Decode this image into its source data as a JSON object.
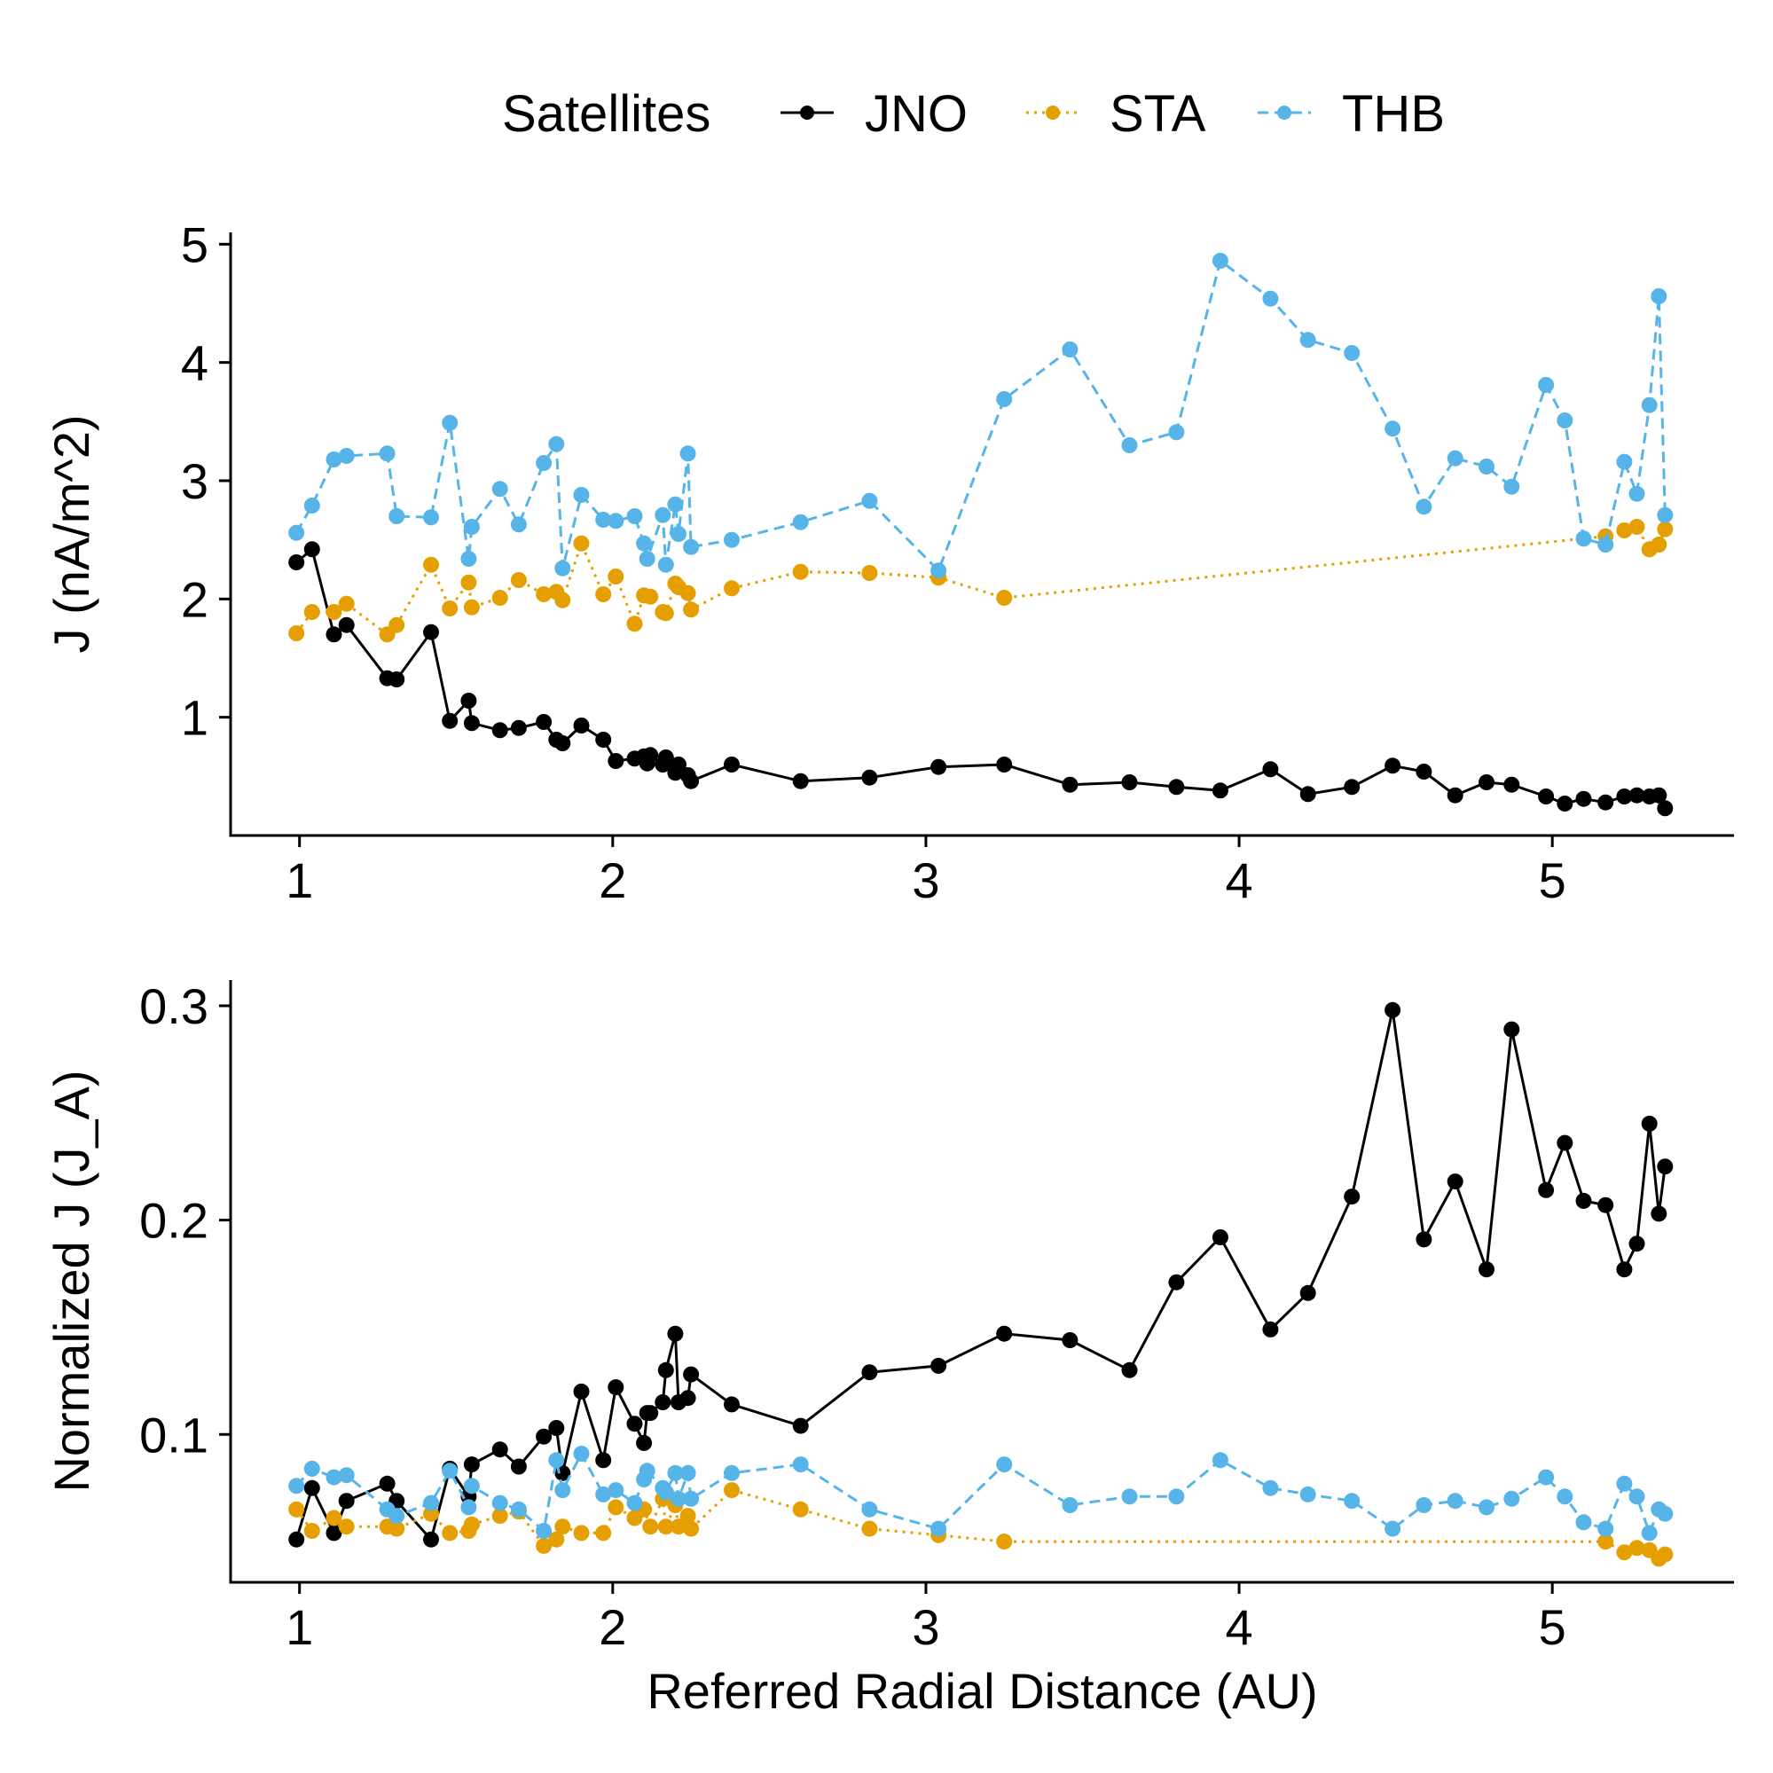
{
  "legend": {
    "title": "Satellites",
    "items": [
      {
        "label": "JNO",
        "color": "#000000",
        "dash": "solid"
      },
      {
        "label": "STA",
        "color": "#E69F00",
        "dash": "dotted"
      },
      {
        "label": "THB",
        "color": "#56B4E9",
        "dash": "dashed"
      }
    ]
  },
  "chart_data": [
    {
      "type": "line",
      "ylabel": "J (nA/m^2)",
      "xlabel": "",
      "xlim": [
        0.78,
        5.58
      ],
      "ylim": [
        0.0,
        5.1
      ],
      "xticks": [
        1,
        2,
        3,
        4,
        5
      ],
      "yticks": [
        1,
        2,
        3,
        4,
        5
      ],
      "grid": false,
      "series": [
        {
          "name": "JNO",
          "x": [
            0.99,
            1.04,
            1.11,
            1.15,
            1.28,
            1.31,
            1.42,
            1.48,
            1.54,
            1.55,
            1.64,
            1.7,
            1.78,
            1.82,
            1.84,
            1.9,
            1.97,
            2.01,
            2.07,
            2.1,
            2.11,
            2.12,
            2.16,
            2.17,
            2.2,
            2.21,
            2.24,
            2.25,
            2.38,
            2.6,
            2.82,
            3.04,
            3.25,
            3.46,
            3.65,
            3.8,
            3.94,
            4.1,
            4.22,
            4.36,
            4.49,
            4.59,
            4.69,
            4.79,
            4.87,
            4.98,
            5.04,
            5.1,
            5.17,
            5.23,
            5.27,
            5.31,
            5.34,
            5.36
          ],
          "y": [
            2.31,
            2.42,
            1.7,
            1.78,
            1.33,
            1.32,
            1.72,
            0.97,
            1.14,
            0.95,
            0.89,
            0.91,
            0.96,
            0.81,
            0.78,
            0.93,
            0.81,
            0.63,
            0.65,
            0.67,
            0.61,
            0.68,
            0.6,
            0.66,
            0.53,
            0.6,
            0.51,
            0.46,
            0.6,
            0.46,
            0.49,
            0.58,
            0.6,
            0.43,
            0.45,
            0.41,
            0.38,
            0.56,
            0.35,
            0.41,
            0.59,
            0.54,
            0.34,
            0.45,
            0.43,
            0.33,
            0.27,
            0.31,
            0.28,
            0.33,
            0.34,
            0.33,
            0.34,
            0.23
          ]
        },
        {
          "name": "STA",
          "x": [
            0.99,
            1.04,
            1.11,
            1.15,
            1.28,
            1.31,
            1.42,
            1.48,
            1.54,
            1.55,
            1.64,
            1.7,
            1.78,
            1.82,
            1.84,
            1.9,
            1.97,
            2.01,
            2.07,
            2.1,
            2.12,
            2.16,
            2.17,
            2.2,
            2.21,
            2.24,
            2.25,
            2.38,
            2.6,
            2.82,
            3.04,
            3.25,
            5.17,
            5.23,
            5.27,
            5.31,
            5.34,
            5.36
          ],
          "y": [
            1.71,
            1.89,
            1.89,
            1.96,
            1.7,
            1.78,
            2.29,
            1.92,
            2.14,
            1.93,
            2.01,
            2.16,
            2.04,
            2.06,
            1.99,
            2.47,
            2.04,
            2.19,
            1.79,
            2.03,
            2.02,
            1.89,
            1.88,
            2.13,
            2.1,
            2.05,
            1.91,
            2.09,
            2.23,
            2.22,
            2.18,
            2.01,
            2.53,
            2.58,
            2.61,
            2.42,
            2.46,
            2.59
          ]
        },
        {
          "name": "THB",
          "x": [
            0.99,
            1.04,
            1.11,
            1.15,
            1.28,
            1.31,
            1.42,
            1.48,
            1.54,
            1.55,
            1.64,
            1.7,
            1.78,
            1.82,
            1.84,
            1.9,
            1.97,
            2.01,
            2.07,
            2.1,
            2.11,
            2.16,
            2.17,
            2.2,
            2.21,
            2.24,
            2.25,
            2.38,
            2.6,
            2.82,
            3.04,
            3.25,
            3.46,
            3.65,
            3.8,
            3.94,
            4.1,
            4.22,
            4.36,
            4.49,
            4.59,
            4.69,
            4.79,
            4.87,
            4.98,
            5.04,
            5.1,
            5.17,
            5.23,
            5.27,
            5.31,
            5.34,
            5.36
          ],
          "y": [
            2.56,
            2.79,
            3.18,
            3.21,
            3.23,
            2.7,
            2.69,
            3.49,
            2.34,
            2.61,
            2.93,
            2.63,
            3.15,
            3.31,
            2.26,
            2.88,
            2.67,
            2.66,
            2.7,
            2.47,
            2.34,
            2.71,
            2.29,
            2.8,
            2.55,
            3.23,
            2.44,
            2.5,
            2.65,
            2.83,
            2.24,
            3.69,
            4.11,
            3.3,
            3.41,
            4.86,
            4.54,
            4.19,
            4.08,
            3.44,
            2.78,
            3.19,
            3.12,
            2.95,
            3.81,
            3.51,
            2.51,
            2.46,
            3.16,
            2.89,
            3.64,
            4.56,
            2.71
          ]
        }
      ]
    },
    {
      "type": "line",
      "ylabel": "Normalized J (J_A)",
      "xlabel": "Referred Radial Distance (AU)",
      "xlim": [
        0.78,
        5.58
      ],
      "ylim": [
        0.031,
        0.312
      ],
      "xticks": [
        1,
        2,
        3,
        4,
        5
      ],
      "yticks": [
        0.1,
        0.2,
        0.3
      ],
      "grid": false,
      "series": [
        {
          "name": "JNO",
          "x": [
            0.99,
            1.04,
            1.11,
            1.15,
            1.28,
            1.31,
            1.42,
            1.48,
            1.54,
            1.55,
            1.64,
            1.7,
            1.78,
            1.82,
            1.84,
            1.9,
            1.97,
            2.01,
            2.07,
            2.1,
            2.11,
            2.12,
            2.16,
            2.17,
            2.2,
            2.21,
            2.24,
            2.25,
            2.38,
            2.6,
            2.82,
            3.04,
            3.25,
            3.46,
            3.65,
            3.8,
            3.94,
            4.1,
            4.22,
            4.36,
            4.49,
            4.59,
            4.69,
            4.79,
            4.87,
            4.98,
            5.04,
            5.1,
            5.17,
            5.23,
            5.27,
            5.31,
            5.34,
            5.36
          ],
          "y": [
            0.051,
            0.075,
            0.054,
            0.069,
            0.077,
            0.069,
            0.051,
            0.084,
            0.071,
            0.086,
            0.093,
            0.085,
            0.099,
            0.103,
            0.082,
            0.12,
            0.088,
            0.122,
            0.105,
            0.096,
            0.11,
            0.11,
            0.115,
            0.13,
            0.147,
            0.115,
            0.117,
            0.128,
            0.114,
            0.104,
            0.129,
            0.132,
            0.147,
            0.144,
            0.13,
            0.171,
            0.192,
            0.149,
            0.166,
            0.211,
            0.298,
            0.191,
            0.218,
            0.177,
            0.289,
            0.214,
            0.236,
            0.209,
            0.207,
            0.177,
            0.189,
            0.245,
            0.203,
            0.225
          ]
        },
        {
          "name": "STA",
          "x": [
            0.99,
            1.04,
            1.11,
            1.15,
            1.28,
            1.31,
            1.42,
            1.48,
            1.54,
            1.55,
            1.64,
            1.7,
            1.78,
            1.82,
            1.84,
            1.9,
            1.97,
            2.01,
            2.07,
            2.1,
            2.12,
            2.16,
            2.17,
            2.2,
            2.21,
            2.24,
            2.25,
            2.38,
            2.6,
            2.82,
            3.04,
            3.25,
            5.17,
            5.23,
            5.27,
            5.31,
            5.34,
            5.36
          ],
          "y": [
            0.065,
            0.055,
            0.061,
            0.057,
            0.057,
            0.056,
            0.063,
            0.054,
            0.055,
            0.058,
            0.062,
            0.064,
            0.048,
            0.051,
            0.057,
            0.054,
            0.054,
            0.066,
            0.061,
            0.065,
            0.057,
            0.07,
            0.057,
            0.067,
            0.057,
            0.062,
            0.056,
            0.074,
            0.065,
            0.056,
            0.053,
            0.05,
            0.05,
            0.045,
            0.047,
            0.046,
            0.042,
            0.044
          ]
        },
        {
          "name": "THB",
          "x": [
            0.99,
            1.04,
            1.11,
            1.15,
            1.28,
            1.31,
            1.42,
            1.48,
            1.54,
            1.55,
            1.64,
            1.7,
            1.78,
            1.82,
            1.84,
            1.9,
            1.97,
            2.01,
            2.07,
            2.1,
            2.11,
            2.16,
            2.17,
            2.2,
            2.21,
            2.24,
            2.25,
            2.38,
            2.6,
            2.82,
            3.04,
            3.25,
            3.46,
            3.65,
            3.8,
            3.94,
            4.1,
            4.22,
            4.36,
            4.49,
            4.59,
            4.69,
            4.79,
            4.87,
            4.98,
            5.04,
            5.1,
            5.17,
            5.23,
            5.27,
            5.31,
            5.34,
            5.36
          ],
          "y": [
            0.076,
            0.084,
            0.08,
            0.081,
            0.065,
            0.062,
            0.068,
            0.083,
            0.066,
            0.076,
            0.068,
            0.065,
            0.055,
            0.088,
            0.074,
            0.091,
            0.072,
            0.074,
            0.068,
            0.079,
            0.083,
            0.075,
            0.073,
            0.082,
            0.07,
            0.082,
            0.07,
            0.082,
            0.086,
            0.065,
            0.056,
            0.086,
            0.067,
            0.071,
            0.071,
            0.088,
            0.075,
            0.072,
            0.069,
            0.056,
            0.067,
            0.069,
            0.066,
            0.07,
            0.08,
            0.071,
            0.059,
            0.056,
            0.077,
            0.071,
            0.054,
            0.065,
            0.063
          ]
        }
      ]
    }
  ]
}
